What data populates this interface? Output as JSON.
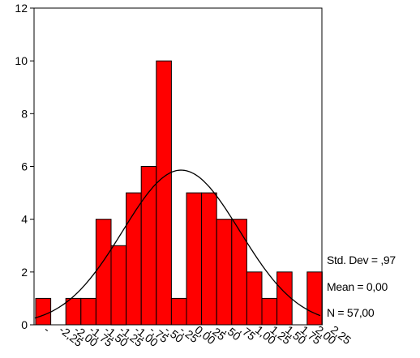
{
  "chart_data": {
    "type": "bar",
    "subtype": "histogram",
    "bar_color": "#ff0000",
    "bar_outline_color": "#000000",
    "curve_color": "#000000",
    "ylim": [
      0,
      12
    ],
    "y_ticks": [
      0,
      2,
      4,
      6,
      8,
      10,
      12
    ],
    "y_tick_labels": [
      "0",
      "2",
      "4",
      "6",
      "8",
      "10",
      "12"
    ],
    "x_tick_labels": [
      "-",
      "-2,25",
      "-2,00",
      "-1,75",
      "-1,50",
      "-1,25",
      "-1,00",
      "-,75",
      "-,50",
      "-,25",
      "0,00",
      ",25",
      ",50",
      ",75",
      "1,00",
      "1,25",
      "1,50",
      "1,75",
      "2,00",
      "2,25"
    ],
    "bars": [
      {
        "bin": 0,
        "value": 1
      },
      {
        "bin": 2,
        "value": 1
      },
      {
        "bin": 3,
        "value": 1
      },
      {
        "bin": 4,
        "value": 4
      },
      {
        "bin": 5,
        "value": 3
      },
      {
        "bin": 6,
        "value": 5
      },
      {
        "bin": 7,
        "value": 6
      },
      {
        "bin": 8,
        "value": 10
      },
      {
        "bin": 9,
        "value": 1
      },
      {
        "bin": 10,
        "value": 5
      },
      {
        "bin": 11,
        "value": 5
      },
      {
        "bin": 12,
        "value": 4
      },
      {
        "bin": 13,
        "value": 4
      },
      {
        "bin": 14,
        "value": 2
      },
      {
        "bin": 15,
        "value": 1
      },
      {
        "bin": 16,
        "value": 2
      },
      {
        "bin": 18,
        "value": 2
      }
    ],
    "normal_curve": {
      "mean": 0.0,
      "std_dev": 0.97,
      "n": 57,
      "bin_width": 0.25
    },
    "grid": false
  },
  "stats": {
    "std_dev": "Std. Dev = ,97",
    "mean": "Mean = 0,00",
    "n": "N = 57,00"
  }
}
